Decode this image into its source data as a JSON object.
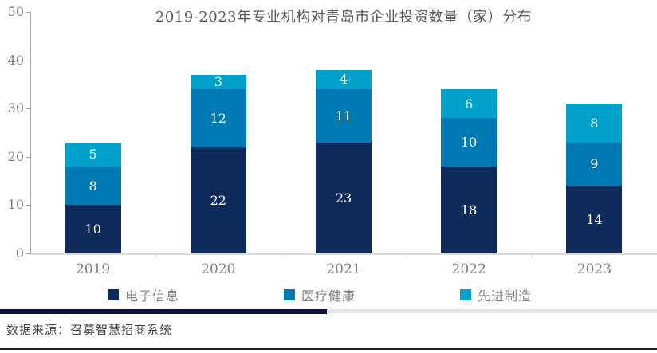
{
  "chart_data": {
    "type": "bar",
    "stacked": true,
    "title": "2019-2023年专业机构对青岛市企业投资数量（家）分布",
    "categories": [
      "2019",
      "2020",
      "2021",
      "2022",
      "2023"
    ],
    "series": [
      {
        "name": "电子信息",
        "color": "#0e2a5a",
        "values": [
          10,
          22,
          23,
          18,
          14
        ]
      },
      {
        "name": "医疗健康",
        "color": "#0079b3",
        "values": [
          8,
          12,
          11,
          10,
          9
        ]
      },
      {
        "name": "先进制造",
        "color": "#00a2cb",
        "values": [
          5,
          3,
          4,
          6,
          8
        ]
      }
    ],
    "totals": [
      23,
      37,
      38,
      34,
      31
    ],
    "xlabel": "",
    "ylabel": "",
    "ylim": [
      0,
      50
    ],
    "yticks": [
      0,
      10,
      20,
      30,
      40,
      50
    ],
    "grid": false,
    "legend_position": "bottom",
    "value_labels": "inside-white"
  },
  "footer": {
    "source": "数据来源：召募智慧招商系统"
  },
  "colors": {
    "series_navy": "#0e2a5a",
    "series_blue": "#0079b3",
    "series_cyan": "#00a2cb",
    "title_text": "#595959",
    "axis_line": "#a6a6a6",
    "x_axis_line": "#d9d9d9",
    "tick_label_text": "#7f7f7f",
    "bar_value_text": "#ffffff",
    "divider_navy": "#0b1143",
    "divider_gray": "#e4e4e4",
    "source_text": "#404040",
    "bottom_border": "#1a1a1a"
  }
}
